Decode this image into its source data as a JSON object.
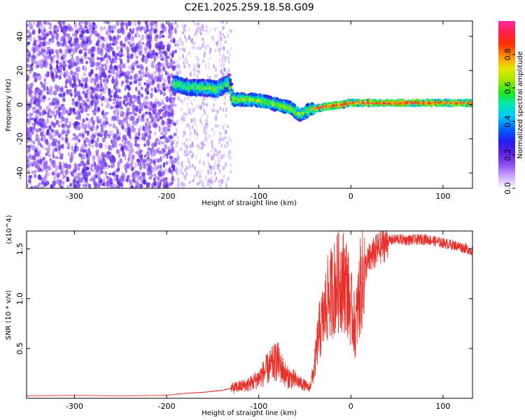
{
  "title": "C2E1.2025.259.18.58.G09",
  "colors": {
    "snr_line": "#e8302a",
    "axis": "#000000"
  },
  "chart_data": [
    {
      "type": "heatmap",
      "title": "C2E1.2025.259.18.58.G09",
      "xlabel": "Height of straight line (km)",
      "ylabel": "Frequency (Hz)",
      "xlim": [
        -352,
        132
      ],
      "ylim": [
        -49,
        49
      ],
      "xticks": [
        -300,
        -200,
        -100,
        0,
        100
      ],
      "xtick_labels": [
        "-300",
        "-200",
        "-100",
        "0",
        "100"
      ],
      "yticks": [
        -40,
        -20,
        0,
        20,
        40
      ],
      "ytick_labels": [
        "-40",
        "-20",
        "0",
        "20",
        "40"
      ],
      "colorbar": {
        "label": "Normalized spectral amplitude",
        "range": [
          0.0,
          1.0
        ],
        "ticks": [
          0.0,
          0.2,
          0.4,
          0.6,
          0.8
        ],
        "tick_labels": [
          "0.0",
          "0.2",
          "0.4",
          "0.6",
          "0.8"
        ],
        "colormap": [
          "#ffffff",
          "#c9a6ff",
          "#8c4df0",
          "#5a1fe0",
          "#1d1ff0",
          "#0066ff",
          "#00c8ff",
          "#00e6b4",
          "#22e61e",
          "#9ce600",
          "#e6e600",
          "#ff9600",
          "#ff3200",
          "#ff1e46",
          "#ff2aa0"
        ]
      },
      "trace": {
        "x": [
          -190,
          -175,
          -160,
          -145,
          -132,
          -128,
          -110,
          -95,
          -80,
          -65,
          -55,
          -45,
          -35,
          -25,
          -10,
          0,
          20,
          50,
          80,
          100,
          132
        ],
        "y": [
          12,
          10,
          10,
          9,
          13,
          3,
          3,
          2,
          0,
          -2,
          -6,
          -3,
          -2,
          -1,
          0,
          1,
          1,
          1,
          1,
          1,
          1
        ]
      }
    },
    {
      "type": "line",
      "xlabel": "Height of straight line (km)",
      "ylabel": "SNR (10 * v/v)",
      "yscale_label": "(x10^4)",
      "xlim": [
        -352,
        132
      ],
      "ylim": [
        0,
        16800
      ],
      "xticks": [
        -300,
        -200,
        -100,
        0,
        100
      ],
      "xtick_labels": [
        "-300",
        "-200",
        "-100",
        "0",
        "100"
      ],
      "yticks": [
        5000,
        10000,
        15000
      ],
      "ytick_labels": [
        "0.5",
        "1.0",
        "1.5"
      ],
      "series": [
        {
          "x": [
            -352,
            -300,
            -250,
            -200,
            -180,
            -160,
            -140,
            -120,
            -110,
            -100,
            -90,
            -80,
            -70,
            -60,
            -50,
            -45,
            -40,
            -35,
            -30,
            -25,
            -20,
            -15,
            -10,
            -5,
            0,
            5,
            10,
            15,
            20,
            30,
            40,
            50,
            60,
            70,
            80,
            90,
            100,
            110,
            120,
            132
          ],
          "y": [
            250,
            300,
            250,
            300,
            500,
            600,
            800,
            1200,
            1400,
            2000,
            3000,
            3800,
            2200,
            1800,
            1300,
            1000,
            2800,
            6500,
            8000,
            10000,
            10800,
            11500,
            12000,
            11500,
            9000,
            7000,
            11000,
            13000,
            14000,
            15000,
            15800,
            16000,
            15900,
            15900,
            16000,
            15800,
            15600,
            15400,
            15200,
            14800
          ]
        }
      ]
    }
  ]
}
